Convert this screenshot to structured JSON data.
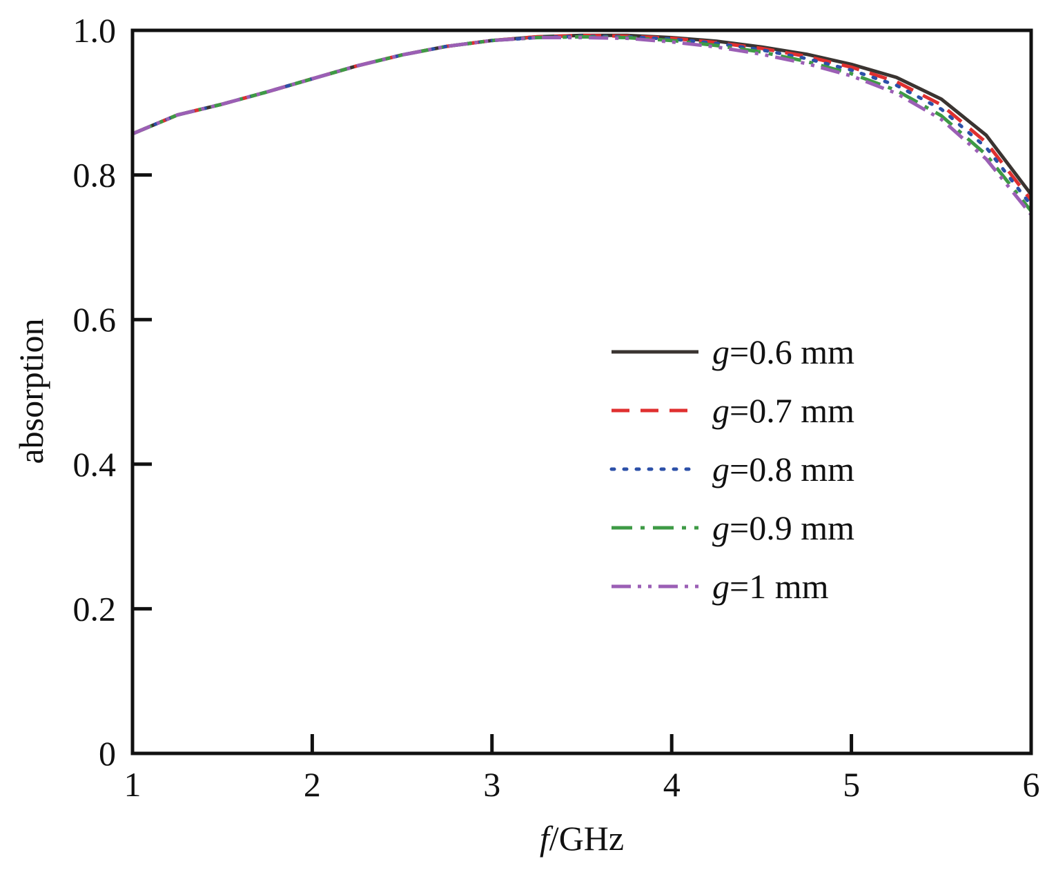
{
  "chart_data": {
    "type": "line",
    "xlabel_italic": "f",
    "xlabel_rest": "/GHz",
    "ylabel": "absorption",
    "xlim": [
      1,
      6
    ],
    "ylim": [
      0,
      1.0
    ],
    "x_ticks": [
      1,
      2,
      3,
      4,
      5,
      6
    ],
    "x_tick_labels": [
      "1",
      "2",
      "3",
      "4",
      "5",
      "6"
    ],
    "y_ticks": [
      0,
      0.2,
      0.4,
      0.6,
      0.8,
      1.0
    ],
    "y_tick_labels": [
      "0",
      "0.2",
      "0.4",
      "0.6",
      "0.8",
      "1.0"
    ],
    "grid": false,
    "legend_position": "center-right",
    "series": [
      {
        "legend_italic": "g",
        "legend_rest": "=0.6 mm",
        "color": "#3a3431",
        "dash": "solid",
        "x": [
          1.0,
          1.25,
          1.5,
          1.75,
          2.0,
          2.25,
          2.5,
          2.75,
          3.0,
          3.25,
          3.5,
          3.75,
          4.0,
          4.25,
          4.5,
          4.75,
          5.0,
          5.25,
          5.5,
          5.75,
          6.0
        ],
        "y": [
          0.857,
          0.883,
          0.898,
          0.915,
          0.933,
          0.951,
          0.966,
          0.978,
          0.986,
          0.991,
          0.993,
          0.993,
          0.99,
          0.985,
          0.977,
          0.967,
          0.953,
          0.935,
          0.905,
          0.855,
          0.773
        ]
      },
      {
        "legend_italic": "g",
        "legend_rest": "=0.7 mm",
        "color": "#e03030",
        "dash": "dashed",
        "x": [
          1.0,
          1.25,
          1.5,
          1.75,
          2.0,
          2.25,
          2.5,
          2.75,
          3.0,
          3.25,
          3.5,
          3.75,
          4.0,
          4.25,
          4.5,
          4.75,
          5.0,
          5.25,
          5.5,
          5.75,
          6.0
        ],
        "y": [
          0.857,
          0.883,
          0.898,
          0.915,
          0.933,
          0.951,
          0.966,
          0.978,
          0.986,
          0.991,
          0.993,
          0.992,
          0.989,
          0.983,
          0.975,
          0.964,
          0.949,
          0.929,
          0.897,
          0.845,
          0.765
        ]
      },
      {
        "legend_italic": "g",
        "legend_rest": "=0.8 mm",
        "color": "#2c50a8",
        "dash": "dotted",
        "x": [
          1.0,
          1.25,
          1.5,
          1.75,
          2.0,
          2.25,
          2.5,
          2.75,
          3.0,
          3.25,
          3.5,
          3.75,
          4.0,
          4.25,
          4.5,
          4.75,
          5.0,
          5.25,
          5.5,
          5.75,
          6.0
        ],
        "y": [
          0.857,
          0.883,
          0.898,
          0.915,
          0.933,
          0.951,
          0.966,
          0.978,
          0.986,
          0.99,
          0.992,
          0.991,
          0.988,
          0.982,
          0.973,
          0.961,
          0.945,
          0.924,
          0.891,
          0.838,
          0.758
        ]
      },
      {
        "legend_italic": "g",
        "legend_rest": "=0.9 mm",
        "color": "#3e9a45",
        "dash": "dashdot",
        "x": [
          1.0,
          1.25,
          1.5,
          1.75,
          2.0,
          2.25,
          2.5,
          2.75,
          3.0,
          3.25,
          3.5,
          3.75,
          4.0,
          4.25,
          4.5,
          4.75,
          5.0,
          5.25,
          5.5,
          5.75,
          6.0
        ],
        "y": [
          0.857,
          0.883,
          0.898,
          0.915,
          0.933,
          0.951,
          0.966,
          0.978,
          0.986,
          0.99,
          0.991,
          0.99,
          0.986,
          0.979,
          0.97,
          0.957,
          0.94,
          0.917,
          0.882,
          0.828,
          0.75
        ]
      },
      {
        "legend_italic": "g",
        "legend_rest": "=1 mm",
        "color": "#9b5fb5",
        "dash": "dashdotdot",
        "x": [
          1.0,
          1.25,
          1.5,
          1.75,
          2.0,
          2.25,
          2.5,
          2.75,
          3.0,
          3.25,
          3.5,
          3.75,
          4.0,
          4.25,
          4.5,
          4.75,
          5.0,
          5.25,
          5.5,
          5.75,
          6.0
        ],
        "y": [
          0.857,
          0.883,
          0.898,
          0.915,
          0.933,
          0.951,
          0.966,
          0.978,
          0.986,
          0.99,
          0.99,
          0.989,
          0.984,
          0.977,
          0.967,
          0.954,
          0.937,
          0.913,
          0.877,
          0.822,
          0.745
        ]
      }
    ]
  }
}
